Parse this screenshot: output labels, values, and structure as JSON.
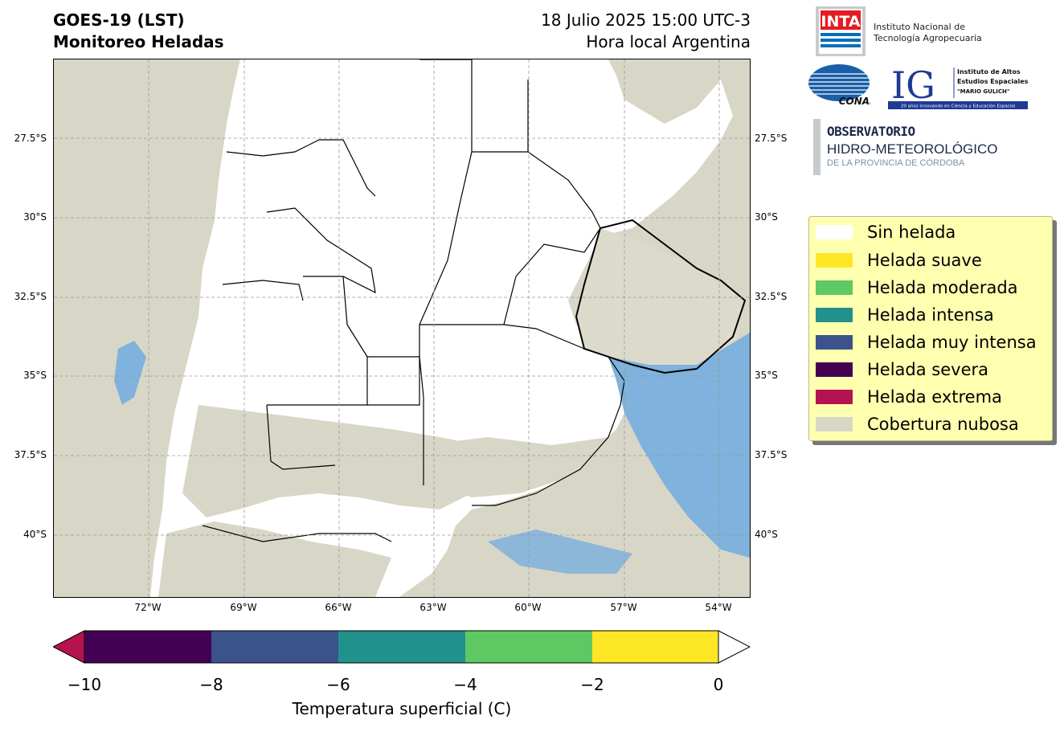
{
  "header": {
    "title_line1": "GOES-19 (LST)",
    "title_line2": "Monitoreo Heladas",
    "date_line": "18 Julio 2025 15:00 UTC-3",
    "timezone_line": "Hora local Argentina"
  },
  "map": {
    "lat_labels": [
      "27.5°S",
      "30°S",
      "32.5°S",
      "35°S",
      "37.5°S",
      "40°S"
    ],
    "lon_labels": [
      "72°W",
      "69°W",
      "66°W",
      "63°W",
      "60°W",
      "57°W",
      "54°W"
    ],
    "colors": {
      "cloud": "#d8d6c6",
      "land": "#ffffff",
      "ocean_cold": "#7fb2dc",
      "grid": "#999999"
    }
  },
  "logos": {
    "inta_mark": "INTA",
    "inta_name_line1": "Instituto Nacional de",
    "inta_name_line2": "Tecnología Agropecuaria",
    "conae_mark": "CONAE",
    "ig_mark": "IG",
    "ig_line1": "Instituto de Altos",
    "ig_line2": "Estudios Espaciales",
    "ig_line3": "\"MARIO GULICH\"",
    "ig_footer": "20 años innovando en Ciencia y Educación Espacial",
    "obs_line1": "OBSERVATORIO",
    "obs_line2": "HIDRO-METEOROLÓGICO",
    "obs_line3": "DE LA PROVINCIA DE CÓRDOBA"
  },
  "legend": {
    "items": [
      {
        "label": "Sin helada",
        "color": "#ffffff"
      },
      {
        "label": "Helada suave",
        "color": "#fde725"
      },
      {
        "label": "Helada moderada",
        "color": "#5ec962"
      },
      {
        "label": "Helada intensa",
        "color": "#21918c"
      },
      {
        "label": "Helada muy intensa",
        "color": "#3b528b"
      },
      {
        "label": "Helada severa",
        "color": "#440154"
      },
      {
        "label": "Helada extrema",
        "color": "#b5134f"
      },
      {
        "label": "Cobertura nubosa",
        "color": "#d8d6c6"
      }
    ]
  },
  "colorbar": {
    "ticks": [
      "−10",
      "−8",
      "−6",
      "−4",
      "−2",
      "0"
    ],
    "label": "Temperatura superficial (C)",
    "segments": [
      "#440154",
      "#3b528b",
      "#21918c",
      "#5ec962",
      "#fde725"
    ],
    "under_color": "#b5134f",
    "over_color": "#ffffff"
  }
}
